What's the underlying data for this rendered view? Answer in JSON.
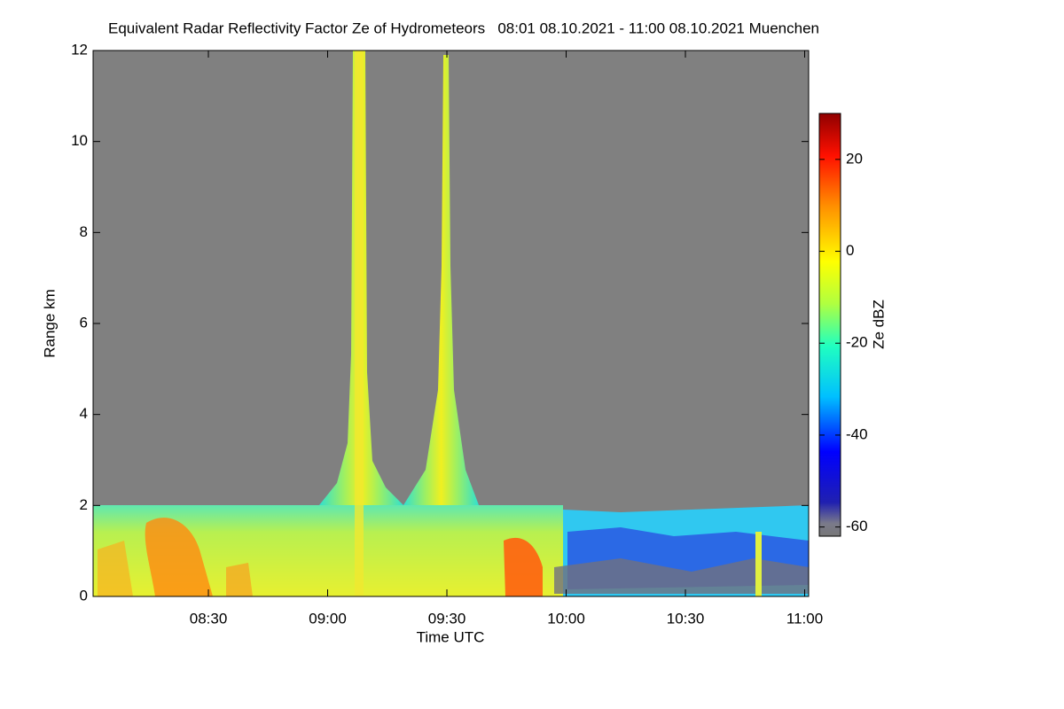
{
  "chart_data": {
    "type": "heatmap",
    "title": "Equivalent Radar Reflectivity Factor Ze of Hydrometeors   08:01 08.10.2021 - 11:00 08.10.2021 Muenchen",
    "x_label": "Time UTC",
    "y_label": "Range km",
    "colorbar_label": "Ze dBZ",
    "xlim": [
      "08:01",
      "11:01"
    ],
    "xticks": [
      "08:30",
      "09:00",
      "09:30",
      "10:00",
      "10:30",
      "11:00"
    ],
    "ylim": [
      0,
      12
    ],
    "yticks": [
      0,
      2,
      4,
      6,
      8,
      10,
      12
    ],
    "clim": [
      -62,
      30
    ],
    "cticks": [
      20,
      0,
      -20,
      -40,
      -60
    ],
    "no_data_color": "#808080"
  }
}
